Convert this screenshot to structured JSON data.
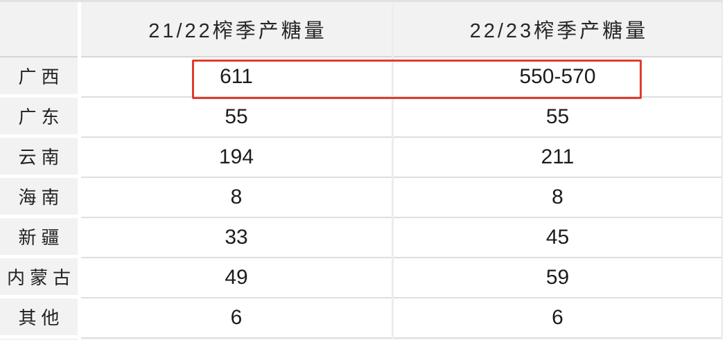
{
  "table": {
    "columns": [
      "",
      "21/22榨季产糖量",
      "22/23榨季产糖量"
    ],
    "rows": [
      {
        "label": "广西",
        "v1": "611",
        "v2": "550-570"
      },
      {
        "label": "广东",
        "v1": "55",
        "v2": "55"
      },
      {
        "label": "云南",
        "v1": "194",
        "v2": "211"
      },
      {
        "label": "海南",
        "v1": "8",
        "v2": "8"
      },
      {
        "label": "新疆",
        "v1": "33",
        "v2": "45"
      },
      {
        "label": "内蒙古",
        "v1": "49",
        "v2": "59"
      },
      {
        "label": "其他",
        "v1": "6",
        "v2": "6"
      }
    ]
  },
  "annotation": {
    "highlight_color": "#e03b30",
    "highlighted_row": "广西",
    "highlighted_values": [
      "611",
      "550-570"
    ]
  },
  "chart_data": {
    "type": "table",
    "title": "",
    "columns": [
      "",
      "21/22榨季产糖量",
      "22/23榨季产糖量"
    ],
    "rows": [
      [
        "广西",
        "611",
        "550-570"
      ],
      [
        "广东",
        "55",
        "55"
      ],
      [
        "云南",
        "194",
        "211"
      ],
      [
        "海南",
        "8",
        "8"
      ],
      [
        "新疆",
        "33",
        "45"
      ],
      [
        "内蒙古",
        "49",
        "59"
      ],
      [
        "其他",
        "6",
        "6"
      ]
    ],
    "notes": "Red rectangle annotation highlights the 广西 row values 611 and 550-570"
  }
}
